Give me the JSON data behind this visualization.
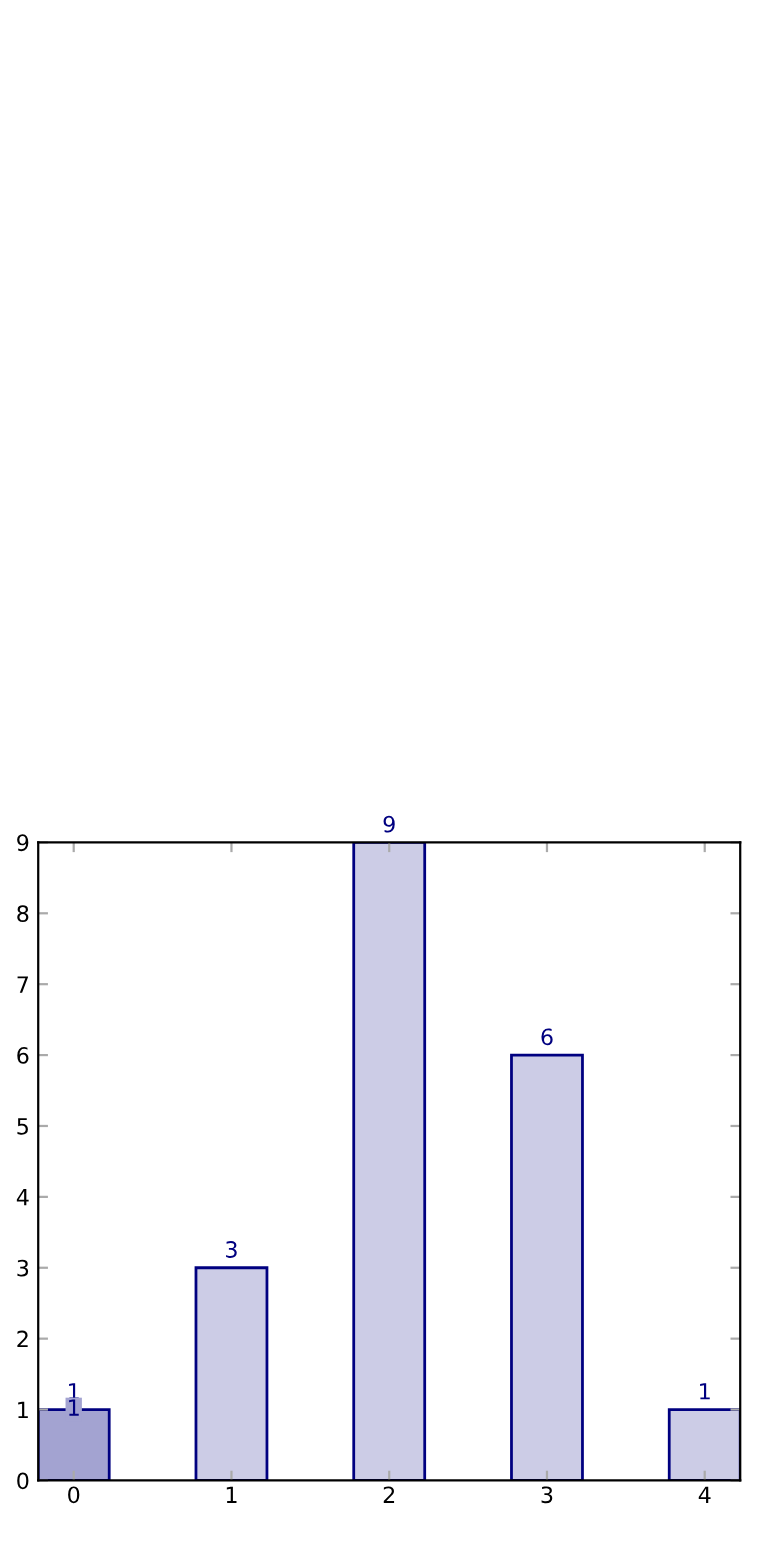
{
  "chart_data": {
    "type": "bar",
    "categories": [
      "0",
      "1",
      "2",
      "3",
      "4"
    ],
    "values": [
      1,
      3,
      9,
      6,
      1
    ],
    "colors": [
      "#a3a3d1",
      "#cccce6",
      "#cccce6",
      "#cccce6",
      "#cccce6"
    ],
    "ylim": [
      0,
      9
    ],
    "yticks": [
      0,
      1,
      2,
      3,
      4,
      5,
      6,
      7,
      8,
      9
    ],
    "data_labels": true,
    "annotations": [
      {
        "text": "1",
        "x": "0",
        "y": 1
      }
    ],
    "grid": false,
    "legend": false
  }
}
